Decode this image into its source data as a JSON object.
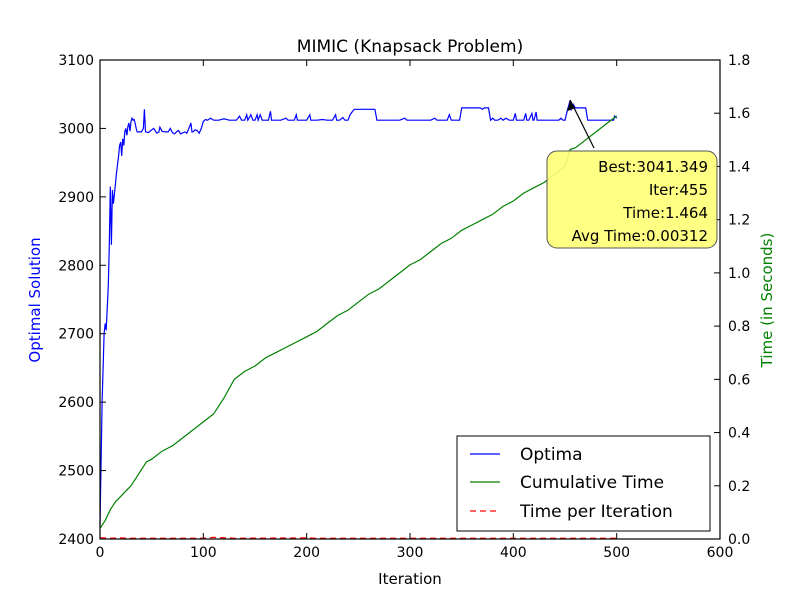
{
  "chart_data": {
    "type": "line",
    "title": "MIMIC (Knapsack Problem)",
    "xlabel": "Iteration",
    "ylabel_left": "Optimal Solution",
    "ylabel_right": "Time (in Seconds)",
    "xlim": [
      0,
      600
    ],
    "ylim_left": [
      2400,
      3100
    ],
    "ylim_right": [
      0.0,
      1.8
    ],
    "x_ticks": [
      "0",
      "100",
      "200",
      "300",
      "400",
      "500",
      "600"
    ],
    "y_left_ticks": [
      "2400",
      "2500",
      "2600",
      "2700",
      "2800",
      "2900",
      "3000",
      "3100"
    ],
    "y_right_ticks": [
      "0.0",
      "0.2",
      "0.4",
      "0.6",
      "0.8",
      "1.0",
      "1.2",
      "1.4",
      "1.6",
      "1.8"
    ],
    "grid": false,
    "legend_position": "lower-right",
    "colors": {
      "optima": "#0000ff",
      "cumulative": "#008000",
      "per_iter": "#ff0000",
      "annotation_fill": "#ffff77",
      "left_axis_label": "#0000ff",
      "right_axis_label": "#008000"
    },
    "series": [
      {
        "name": "Optima",
        "axis": "left",
        "style": "solid",
        "points": [
          [
            0,
            2420
          ],
          [
            2,
            2600
          ],
          [
            4,
            2700
          ],
          [
            5,
            2715
          ],
          [
            6,
            2705
          ],
          [
            8,
            2770
          ],
          [
            9,
            2830
          ],
          [
            10,
            2915
          ],
          [
            11,
            2830
          ],
          [
            12,
            2910
          ],
          [
            13,
            2890
          ],
          [
            14,
            2905
          ],
          [
            16,
            2935
          ],
          [
            18,
            2960
          ],
          [
            19,
            2975
          ],
          [
            20,
            2980
          ],
          [
            21,
            2960
          ],
          [
            22,
            2985
          ],
          [
            23,
            2975
          ],
          [
            24,
            2995
          ],
          [
            25,
            3000
          ],
          [
            26,
            2990
          ],
          [
            27,
            3003
          ],
          [
            28,
            3008
          ],
          [
            29,
            2996
          ],
          [
            30,
            3010
          ],
          [
            31,
            3015
          ],
          [
            32,
            3012
          ],
          [
            33,
            3013
          ],
          [
            34,
            3008
          ],
          [
            35,
            3000
          ],
          [
            36,
            2995
          ],
          [
            40,
            2995
          ],
          [
            42,
            3000
          ],
          [
            43,
            3028
          ],
          [
            44,
            2995
          ],
          [
            47,
            2994
          ],
          [
            50,
            2998
          ],
          [
            52,
            3000
          ],
          [
            55,
            2993
          ],
          [
            57,
            2995
          ],
          [
            58,
            3002
          ],
          [
            60,
            2996
          ],
          [
            63,
            2995
          ],
          [
            66,
            2995
          ],
          [
            68,
            3000
          ],
          [
            70,
            2994
          ],
          [
            72,
            2992
          ],
          [
            74,
            2995
          ],
          [
            76,
            2997
          ],
          [
            78,
            2992
          ],
          [
            82,
            2995
          ],
          [
            84,
            2993
          ],
          [
            86,
            3000
          ],
          [
            88,
            3008
          ],
          [
            89,
            2995
          ],
          [
            90,
            2995
          ],
          [
            92,
            2998
          ],
          [
            94,
            2997
          ],
          [
            96,
            2993
          ],
          [
            98,
            3000
          ],
          [
            100,
            3010
          ],
          [
            102,
            3013
          ],
          [
            104,
            3012
          ],
          [
            107,
            3015
          ],
          [
            110,
            3012
          ],
          [
            115,
            3012
          ],
          [
            120,
            3014
          ],
          [
            125,
            3012
          ],
          [
            130,
            3012
          ],
          [
            132,
            3012
          ],
          [
            135,
            3018
          ],
          [
            137,
            3012
          ],
          [
            140,
            3012
          ],
          [
            142,
            3020
          ],
          [
            143,
            3012
          ],
          [
            146,
            3020
          ],
          [
            148,
            3012
          ],
          [
            150,
            3012
          ],
          [
            152,
            3020
          ],
          [
            153,
            3012
          ],
          [
            155,
            3020
          ],
          [
            157,
            3012
          ],
          [
            160,
            3012
          ],
          [
            163,
            3012
          ],
          [
            165,
            3025
          ],
          [
            166,
            3012
          ],
          [
            170,
            3012
          ],
          [
            175,
            3012
          ],
          [
            180,
            3015
          ],
          [
            182,
            3012
          ],
          [
            185,
            3012
          ],
          [
            188,
            3012
          ],
          [
            190,
            3020
          ],
          [
            191,
            3012
          ],
          [
            195,
            3012
          ],
          [
            200,
            3012
          ],
          [
            203,
            3020
          ],
          [
            204,
            3012
          ],
          [
            210,
            3012
          ],
          [
            215,
            3013
          ],
          [
            220,
            3012
          ],
          [
            225,
            3012
          ],
          [
            228,
            3020
          ],
          [
            229,
            3012
          ],
          [
            232,
            3012
          ],
          [
            235,
            3016
          ],
          [
            237,
            3012
          ],
          [
            240,
            3012
          ],
          [
            242,
            3020
          ],
          [
            244,
            3024
          ],
          [
            246,
            3028
          ],
          [
            250,
            3028
          ],
          [
            260,
            3028
          ],
          [
            266,
            3028
          ],
          [
            268,
            3012
          ],
          [
            275,
            3012
          ],
          [
            280,
            3012
          ],
          [
            285,
            3012
          ],
          [
            290,
            3012
          ],
          [
            295,
            3015
          ],
          [
            297,
            3012
          ],
          [
            300,
            3012
          ],
          [
            305,
            3012
          ],
          [
            310,
            3012
          ],
          [
            315,
            3012
          ],
          [
            320,
            3012
          ],
          [
            324,
            3015
          ],
          [
            326,
            3012
          ],
          [
            330,
            3012
          ],
          [
            336,
            3012
          ],
          [
            338,
            3020
          ],
          [
            340,
            3012
          ],
          [
            345,
            3012
          ],
          [
            348,
            3012
          ],
          [
            350,
            3030
          ],
          [
            355,
            3030
          ],
          [
            360,
            3030
          ],
          [
            365,
            3030
          ],
          [
            368,
            3030
          ],
          [
            370,
            3028
          ],
          [
            372,
            3030
          ],
          [
            376,
            3030
          ],
          [
            378,
            3012
          ],
          [
            380,
            3015
          ],
          [
            382,
            3012
          ],
          [
            385,
            3012
          ],
          [
            388,
            3015
          ],
          [
            390,
            3012
          ],
          [
            393,
            3015
          ],
          [
            396,
            3012
          ],
          [
            400,
            3012
          ],
          [
            402,
            3022
          ],
          [
            403,
            3012
          ],
          [
            406,
            3012
          ],
          [
            410,
            3012
          ],
          [
            412,
            3022
          ],
          [
            413,
            3012
          ],
          [
            415,
            3012
          ],
          [
            418,
            3022
          ],
          [
            419,
            3012
          ],
          [
            420,
            3012
          ],
          [
            422,
            3024
          ],
          [
            423,
            3012
          ],
          [
            430,
            3012
          ],
          [
            440,
            3012
          ],
          [
            444,
            3012
          ],
          [
            446,
            3015
          ],
          [
            448,
            3012
          ],
          [
            450,
            3012
          ],
          [
            452,
            3025
          ],
          [
            455,
            3041.349
          ],
          [
            456,
            3028
          ],
          [
            458,
            3035
          ],
          [
            460,
            3030
          ],
          [
            465,
            3030
          ],
          [
            470,
            3030
          ],
          [
            472,
            3012
          ],
          [
            480,
            3012
          ],
          [
            490,
            3012
          ],
          [
            497,
            3012
          ],
          [
            498,
            3018
          ],
          [
            500,
            3015
          ]
        ]
      },
      {
        "name": "Cumulative Time",
        "axis": "right",
        "style": "solid",
        "points": [
          [
            0,
            0.04
          ],
          [
            5,
            0.07
          ],
          [
            10,
            0.11
          ],
          [
            15,
            0.14
          ],
          [
            20,
            0.16
          ],
          [
            25,
            0.18
          ],
          [
            30,
            0.2
          ],
          [
            35,
            0.23
          ],
          [
            40,
            0.26
          ],
          [
            45,
            0.29
          ],
          [
            50,
            0.3
          ],
          [
            60,
            0.33
          ],
          [
            70,
            0.35
          ],
          [
            80,
            0.38
          ],
          [
            90,
            0.41
          ],
          [
            100,
            0.44
          ],
          [
            110,
            0.47
          ],
          [
            115,
            0.5
          ],
          [
            120,
            0.53
          ],
          [
            130,
            0.6
          ],
          [
            140,
            0.63
          ],
          [
            150,
            0.65
          ],
          [
            160,
            0.68
          ],
          [
            170,
            0.7
          ],
          [
            180,
            0.72
          ],
          [
            190,
            0.74
          ],
          [
            200,
            0.76
          ],
          [
            210,
            0.78
          ],
          [
            220,
            0.81
          ],
          [
            230,
            0.84
          ],
          [
            240,
            0.86
          ],
          [
            250,
            0.89
          ],
          [
            260,
            0.92
          ],
          [
            270,
            0.94
          ],
          [
            280,
            0.97
          ],
          [
            290,
            1.0
          ],
          [
            300,
            1.03
          ],
          [
            310,
            1.05
          ],
          [
            320,
            1.08
          ],
          [
            330,
            1.11
          ],
          [
            340,
            1.13
          ],
          [
            350,
            1.16
          ],
          [
            360,
            1.18
          ],
          [
            370,
            1.2
          ],
          [
            380,
            1.22
          ],
          [
            390,
            1.25
          ],
          [
            400,
            1.27
          ],
          [
            410,
            1.3
          ],
          [
            420,
            1.32
          ],
          [
            430,
            1.34
          ],
          [
            440,
            1.37
          ],
          [
            450,
            1.4
          ],
          [
            455,
            1.464
          ],
          [
            460,
            1.47
          ],
          [
            470,
            1.5
          ],
          [
            480,
            1.53
          ],
          [
            490,
            1.56
          ],
          [
            500,
            1.59
          ]
        ]
      },
      {
        "name": "Time per Iteration",
        "axis": "right",
        "style": "dashed",
        "points": [
          [
            0,
            0.005
          ],
          [
            10,
            0.003
          ],
          [
            20,
            0.004
          ],
          [
            30,
            0.003
          ],
          [
            50,
            0.003
          ],
          [
            100,
            0.003
          ],
          [
            110,
            0.006
          ],
          [
            130,
            0.003
          ],
          [
            200,
            0.004
          ],
          [
            210,
            0.003
          ],
          [
            300,
            0.003
          ],
          [
            400,
            0.003
          ],
          [
            500,
            0.003
          ]
        ]
      }
    ],
    "annotation": {
      "target": {
        "x": 455,
        "y": 3041.349
      },
      "lines": [
        "Best:3041.349",
        "Iter:455",
        "Time:1.464",
        "Avg Time:0.00312"
      ]
    }
  }
}
